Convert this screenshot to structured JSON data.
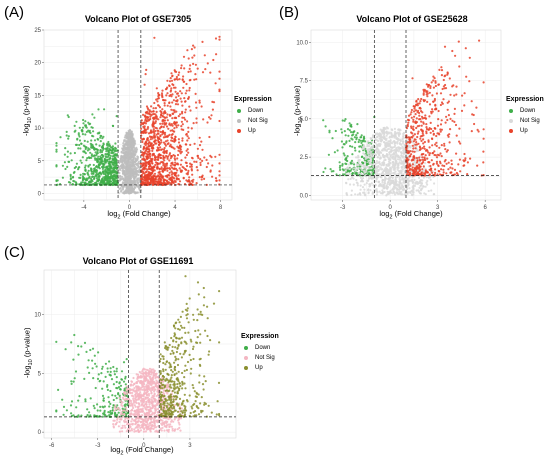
{
  "panels": [
    {
      "letter": "(A)",
      "title": "Volcano Plot of GSE7305",
      "xlabel_prefix": "log",
      "xlabel_sub": "2",
      "xlabel_suffix": " (Fold Change)",
      "ylabel_prefix": "-log",
      "ylabel_sub": "10",
      "ylabel_suffix": " (p-value)",
      "legend_title": "Expression",
      "legend": [
        "Down",
        "Not Sig",
        "Up"
      ]
    },
    {
      "letter": "(B)",
      "title": "Volcano Plot of GSE25628",
      "xlabel_prefix": "log",
      "xlabel_sub": "2",
      "xlabel_suffix": " (Fold Change)",
      "ylabel_prefix": "-log",
      "ylabel_sub": "10",
      "ylabel_suffix": " (p-value)",
      "legend_title": "Expression",
      "legend": [
        "Down",
        "Not Sig",
        "Up"
      ]
    },
    {
      "letter": "(C)",
      "title": "Volcano Plot of GSE11691",
      "xlabel_prefix": "log",
      "xlabel_sub": "2",
      "xlabel_suffix": " (Fold Change)",
      "ylabel_prefix": "-log",
      "ylabel_sub": "10",
      "ylabel_suffix": " (p-value)",
      "legend_title": "Expression",
      "legend": [
        "Down",
        "Not Sig",
        "Up"
      ]
    }
  ],
  "chart_data": [
    {
      "type": "scatter",
      "title": "Volcano Plot of GSE7305",
      "xticks": [
        -4,
        0,
        4,
        8
      ],
      "yticks": [
        0,
        5,
        10,
        15,
        20,
        25
      ],
      "xlim": [
        -7.5,
        9
      ],
      "ylim": [
        -1,
        25
      ],
      "fc_threshold": [
        -1,
        1
      ],
      "p_threshold_line": 1.3,
      "grid": true,
      "legend_position": "right",
      "series": [
        {
          "name": "Down",
          "color": "#3fae49",
          "x_range": [
            -6.5,
            -1
          ],
          "y_range": [
            1.3,
            13
          ]
        },
        {
          "name": "Not Sig",
          "color": "#bdbdbd",
          "x_range": [
            -1,
            1
          ],
          "y_range": [
            0,
            10
          ]
        },
        {
          "name": "Up",
          "color": "#e8432b",
          "x_range": [
            1,
            8
          ],
          "y_range": [
            1.3,
            24
          ]
        }
      ]
    },
    {
      "type": "scatter",
      "title": "Volcano Plot of GSE25628",
      "xticks": [
        -3,
        0,
        3,
        6
      ],
      "yticks": [
        0.0,
        2.5,
        5.0,
        7.5,
        10.0
      ],
      "ytick_labels": [
        "0.0",
        "2.5",
        "5.0",
        "7.5",
        "10.0"
      ],
      "xlim": [
        -5,
        7
      ],
      "ylim": [
        -0.3,
        10.8
      ],
      "fc_threshold": [
        -1,
        1
      ],
      "p_threshold_line": 1.3,
      "grid": true,
      "legend_position": "right",
      "series": [
        {
          "name": "Down",
          "color": "#3fae49",
          "x_range": [
            -4.5,
            -1
          ],
          "y_range": [
            1.3,
            5.6
          ]
        },
        {
          "name": "Not Sig",
          "color": "#d9d9d9",
          "x_range": [
            -2.8,
            2.8
          ],
          "y_range": [
            0,
            4.5
          ]
        },
        {
          "name": "Up",
          "color": "#e8432b",
          "x_range": [
            1,
            6
          ],
          "y_range": [
            1.3,
            10.3
          ]
        }
      ]
    },
    {
      "type": "scatter",
      "title": "Volcano Plot of GSE11691",
      "xticks": [
        -6,
        -3,
        0,
        3
      ],
      "yticks": [
        0,
        5,
        10
      ],
      "xlim": [
        -6.5,
        6
      ],
      "ylim": [
        -0.5,
        13.8
      ],
      "fc_threshold": [
        -1,
        1
      ],
      "p_threshold_line": 1.3,
      "grid": true,
      "legend_position": "right",
      "series": [
        {
          "name": "Down",
          "color": "#3fae49",
          "x_range": [
            -5.8,
            -1
          ],
          "y_range": [
            1.3,
            8.5
          ]
        },
        {
          "name": "Not Sig",
          "color": "#f4b6c2",
          "x_range": [
            -2,
            2.5
          ],
          "y_range": [
            0,
            5.5
          ]
        },
        {
          "name": "Up",
          "color": "#8a8f2f",
          "x_range": [
            1,
            5
          ],
          "y_range": [
            1.3,
            13.5
          ]
        }
      ]
    }
  ]
}
